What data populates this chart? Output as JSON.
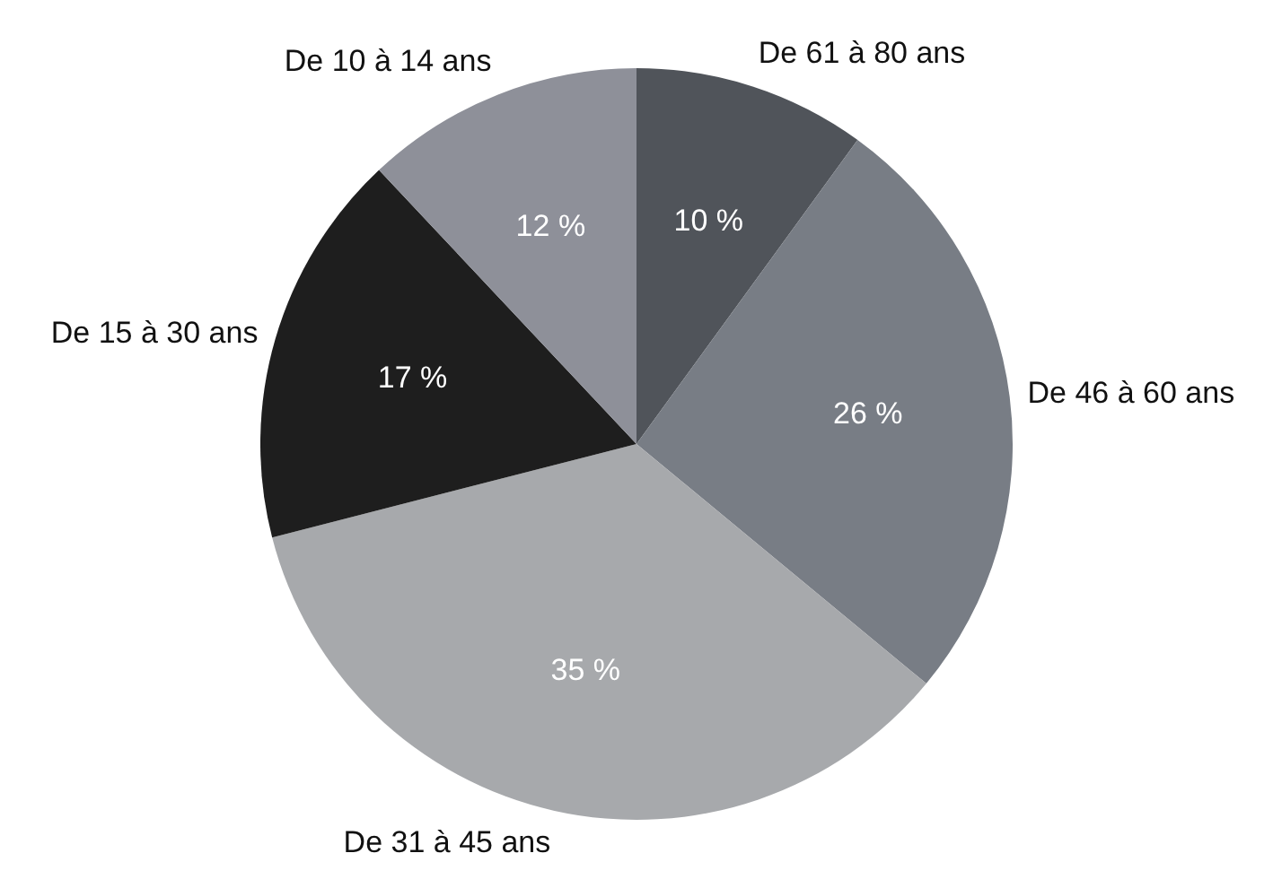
{
  "chart_data": {
    "type": "pie",
    "categories": [
      "De 61 à 80 ans",
      "De 46 à 60 ans",
      "De 31 à 45 ans",
      "De 15 à 30 ans",
      "De 10 à 14 ans"
    ],
    "values": [
      10,
      26,
      35,
      17,
      12
    ],
    "value_labels": [
      "10 %",
      "26 %",
      "35 %",
      "17 %",
      "12 %"
    ],
    "colors": [
      "#50545a",
      "#787d85",
      "#a7a9ac",
      "#1e1e1e",
      "#8e9099"
    ]
  }
}
